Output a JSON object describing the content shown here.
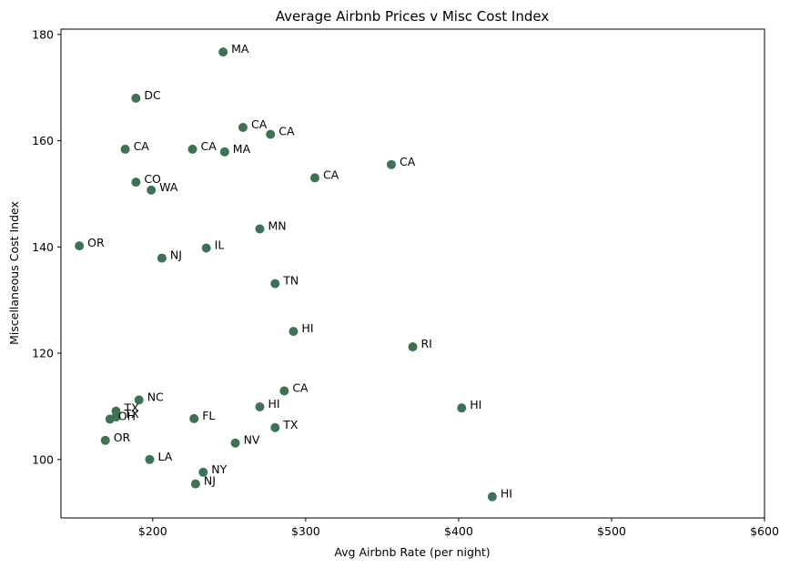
{
  "chart_data": {
    "type": "scatter",
    "title": "Average Airbnb Prices v Misc Cost Index",
    "xlabel": "Avg Airbnb Rate (per night)",
    "ylabel": "Miscellaneous Cost Index",
    "xlim": [
      140,
      600
    ],
    "ylim": [
      89,
      181
    ],
    "xticks": [
      200,
      300,
      400,
      500,
      600
    ],
    "xtick_labels": [
      "$200",
      "$300",
      "$400",
      "$500",
      "$600"
    ],
    "yticks": [
      100,
      120,
      140,
      160,
      180
    ],
    "ytick_labels": [
      "100",
      "120",
      "140",
      "160",
      "180"
    ],
    "grid": false,
    "marker_color": "#3d7354",
    "points": [
      {
        "x": 246,
        "y": 176.7,
        "label": "MA"
      },
      {
        "x": 189,
        "y": 168.0,
        "label": "DC"
      },
      {
        "x": 259,
        "y": 162.5,
        "label": "CA"
      },
      {
        "x": 277,
        "y": 161.2,
        "label": "CA"
      },
      {
        "x": 182,
        "y": 158.4,
        "label": "CA"
      },
      {
        "x": 226,
        "y": 158.4,
        "label": "CA"
      },
      {
        "x": 247,
        "y": 157.9,
        "label": "MA"
      },
      {
        "x": 356,
        "y": 155.5,
        "label": "CA"
      },
      {
        "x": 306,
        "y": 153.0,
        "label": "CA"
      },
      {
        "x": 189,
        "y": 152.2,
        "label": "CO"
      },
      {
        "x": 199,
        "y": 150.7,
        "label": "WA"
      },
      {
        "x": 270,
        "y": 143.4,
        "label": "MN"
      },
      {
        "x": 152,
        "y": 140.2,
        "label": "OR"
      },
      {
        "x": 235,
        "y": 139.8,
        "label": "IL"
      },
      {
        "x": 206,
        "y": 137.9,
        "label": "NJ"
      },
      {
        "x": 280,
        "y": 133.1,
        "label": "TN"
      },
      {
        "x": 292,
        "y": 124.1,
        "label": "HI"
      },
      {
        "x": 370,
        "y": 121.2,
        "label": "RI"
      },
      {
        "x": 286,
        "y": 112.9,
        "label": "CA"
      },
      {
        "x": 191,
        "y": 111.2,
        "label": "NC"
      },
      {
        "x": 270,
        "y": 109.9,
        "label": "HI"
      },
      {
        "x": 402,
        "y": 109.7,
        "label": "HI"
      },
      {
        "x": 176,
        "y": 109.1,
        "label": "TX"
      },
      {
        "x": 176,
        "y": 108.0,
        "label": "TX"
      },
      {
        "x": 172,
        "y": 107.6,
        "label": "OH"
      },
      {
        "x": 227,
        "y": 107.7,
        "label": "FL"
      },
      {
        "x": 280,
        "y": 106.0,
        "label": "TX"
      },
      {
        "x": 169,
        "y": 103.6,
        "label": "OR"
      },
      {
        "x": 254,
        "y": 103.1,
        "label": "NV"
      },
      {
        "x": 198,
        "y": 100.0,
        "label": "LA"
      },
      {
        "x": 233,
        "y": 97.6,
        "label": "NY"
      },
      {
        "x": 228,
        "y": 95.4,
        "label": "NJ"
      },
      {
        "x": 422,
        "y": 93.0,
        "label": "HI"
      }
    ]
  }
}
